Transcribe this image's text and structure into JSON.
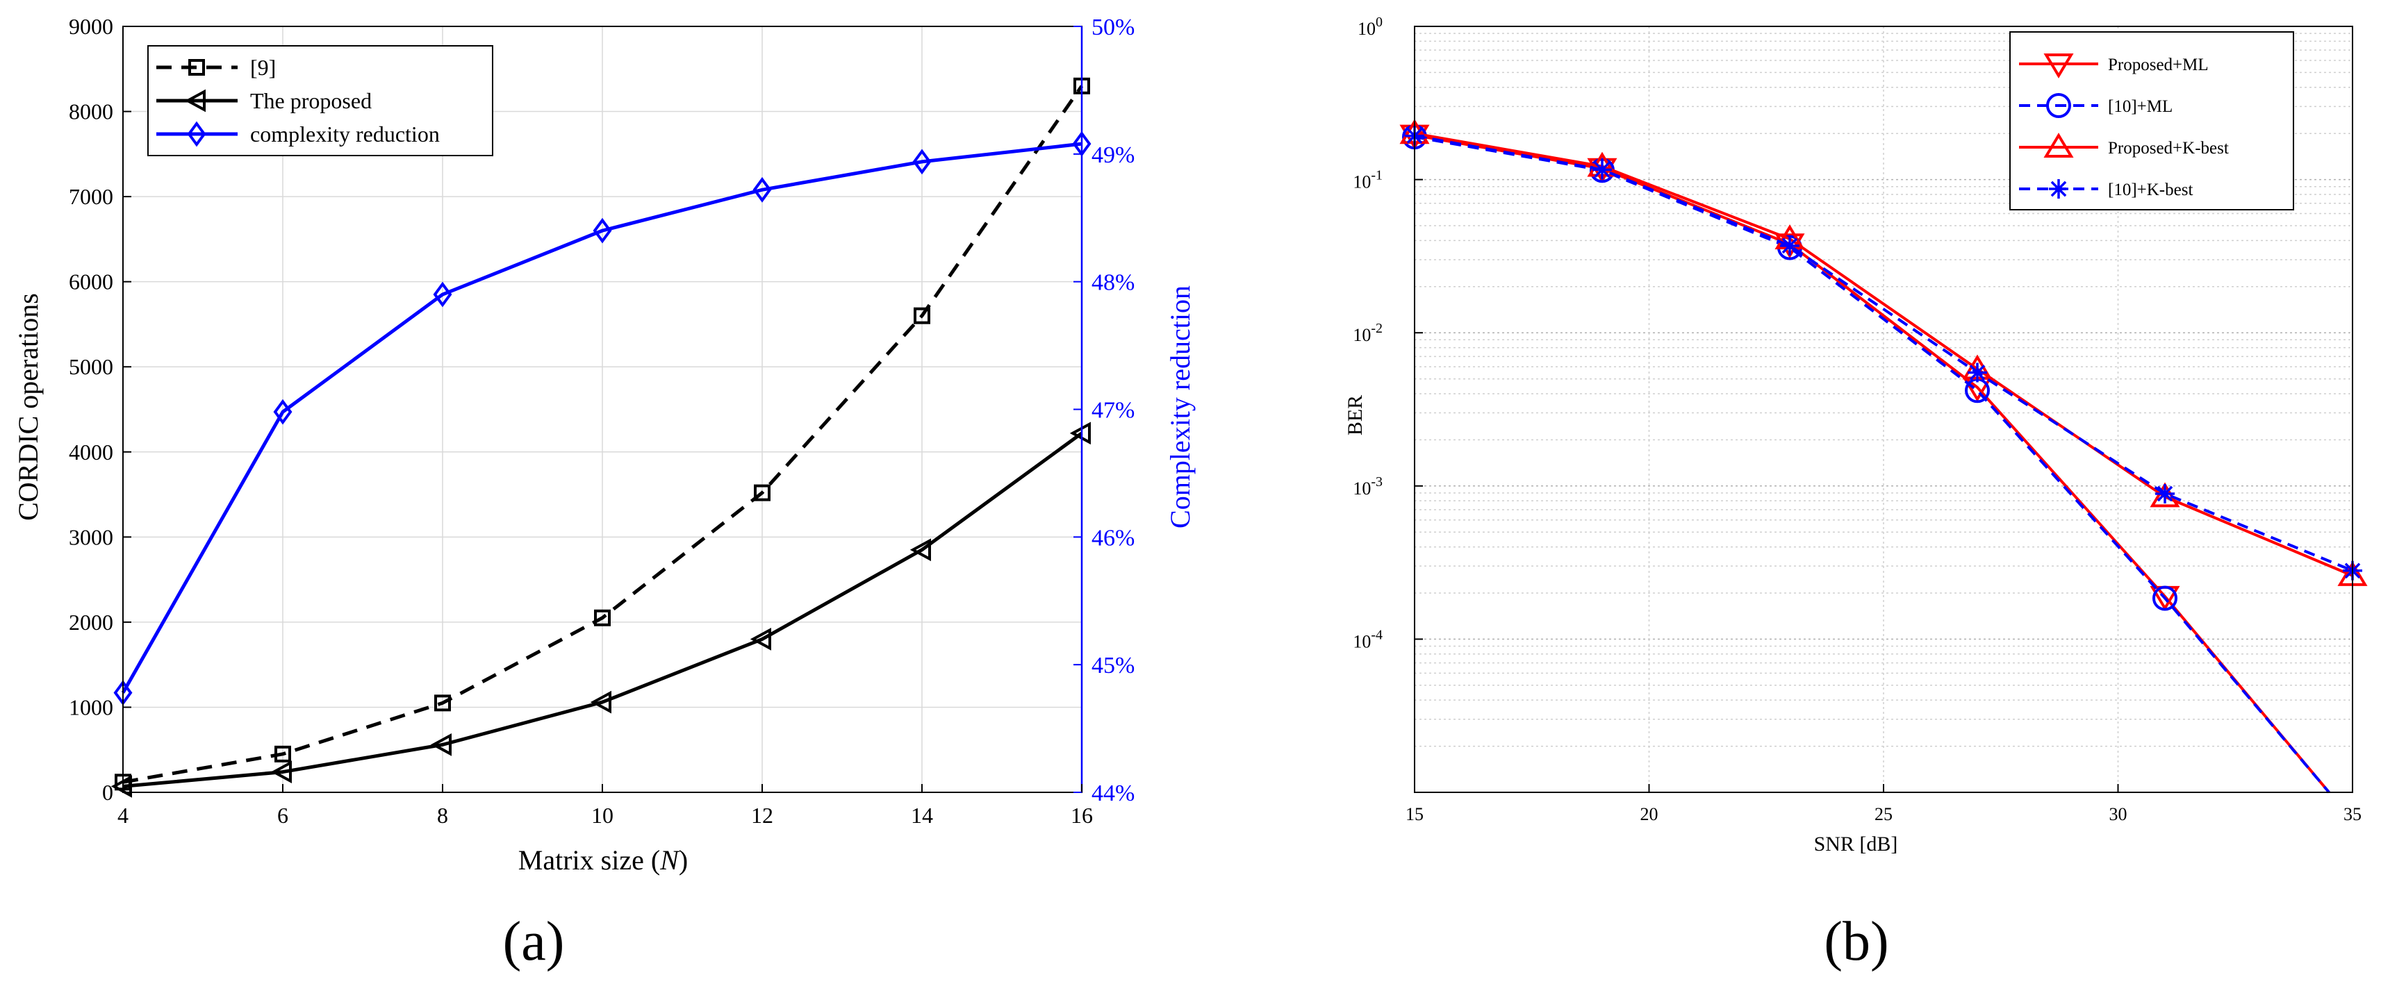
{
  "chart_data": [
    {
      "type": "line",
      "panel_label": "(a)",
      "xlabel_prefix": "Matrix size (",
      "xlabel_var": "N",
      "xlabel_suffix": ")",
      "ylabel": "CORDIC operations",
      "y2label": "Complexity reduction",
      "xlim": [
        4,
        16
      ],
      "ylim": [
        0,
        9000
      ],
      "y2lim": [
        44,
        50
      ],
      "xticks": [
        "4",
        "6",
        "8",
        "10",
        "12",
        "14",
        "16"
      ],
      "yticks": [
        "0",
        "1000",
        "2000",
        "3000",
        "4000",
        "5000",
        "6000",
        "7000",
        "8000",
        "9000"
      ],
      "y2ticks": [
        "44%",
        "45%",
        "46%",
        "47%",
        "48%",
        "49%",
        "50%"
      ],
      "grid": true,
      "legend_position": "top-left",
      "x": [
        4,
        6,
        8,
        10,
        12,
        14,
        16
      ],
      "series": [
        {
          "name": "[9]",
          "axis": "left",
          "color": "#000000",
          "marker": "square",
          "dashed": true,
          "values": [
            120,
            450,
            1050,
            2050,
            3520,
            5600,
            8300
          ]
        },
        {
          "name": "The proposed",
          "axis": "left",
          "color": "#000000",
          "marker": "triangle-left",
          "dashed": false,
          "values": [
            70,
            240,
            560,
            1060,
            1800,
            2850,
            4220
          ]
        },
        {
          "name": "complexity reduction",
          "axis": "right",
          "color": "#0000ff",
          "marker": "diamond",
          "dashed": false,
          "values": [
            44.78,
            46.98,
            47.9,
            48.4,
            48.72,
            48.94,
            49.08
          ]
        }
      ]
    },
    {
      "type": "line",
      "panel_label": "(b)",
      "xlabel": "SNR [dB]",
      "ylabel": "BER",
      "yscale": "log",
      "xlim": [
        15,
        35
      ],
      "ylim_exp": [
        -5,
        0
      ],
      "xticks": [
        "15",
        "20",
        "25",
        "30",
        "35"
      ],
      "ytick_base": "10",
      "ytick_exps": [
        "0",
        "-1",
        "-2",
        "-3",
        "-4"
      ],
      "grid": true,
      "legend_position": "top-right",
      "series": [
        {
          "name": "Proposed+ML",
          "color": "#ff0000",
          "marker": "triangle-down",
          "dashed": false,
          "x": [
            15,
            19,
            23,
            27,
            31,
            34.5
          ],
          "values": [
            0.195,
            0.118,
            0.038,
            0.0044,
            0.00019,
            1e-05
          ]
        },
        {
          "name": "[10]+ML",
          "color": "#0000ff",
          "marker": "circle",
          "dashed": true,
          "x": [
            15,
            19,
            23,
            27,
            31,
            34.5
          ],
          "values": [
            0.19,
            0.115,
            0.036,
            0.0042,
            0.000185,
            1e-05
          ]
        },
        {
          "name": "Proposed+K-best",
          "color": "#ff0000",
          "marker": "triangle-up",
          "dashed": false,
          "x": [
            15,
            19,
            23,
            27,
            31,
            35
          ],
          "values": [
            0.2,
            0.122,
            0.041,
            0.0058,
            0.00085,
            0.00026
          ]
        },
        {
          "name": "[10]+K-best",
          "color": "#0000ff",
          "marker": "asterisk",
          "dashed": true,
          "x": [
            15,
            19,
            23,
            27,
            31,
            35
          ],
          "values": [
            0.193,
            0.116,
            0.037,
            0.0055,
            0.00089,
            0.00028
          ]
        }
      ]
    }
  ]
}
